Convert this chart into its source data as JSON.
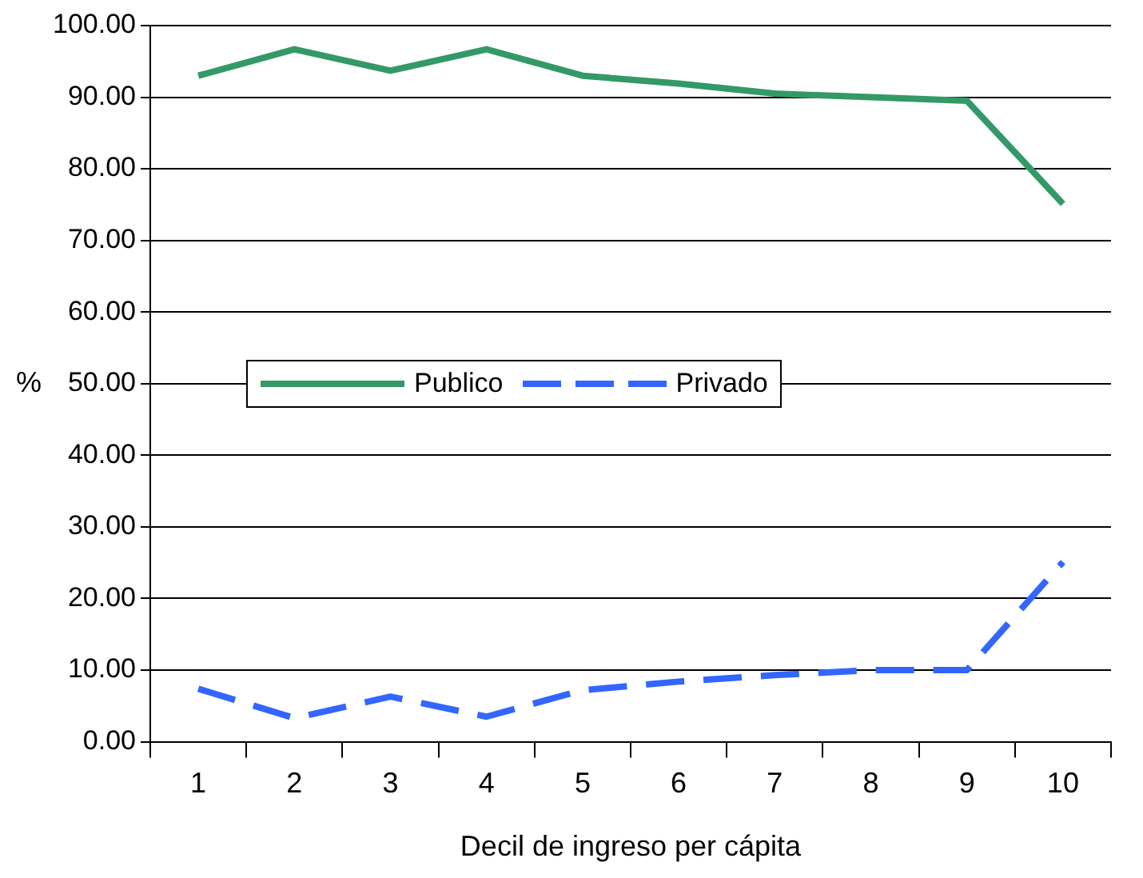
{
  "chart_data": {
    "type": "line",
    "xlabel": "Decil de ingreso per cápita",
    "ylabel": "%",
    "categories": [
      "1",
      "2",
      "3",
      "4",
      "5",
      "6",
      "7",
      "8",
      "9",
      "10"
    ],
    "series": [
      {
        "name": "Publico",
        "color": "#339966",
        "line_style": "solid",
        "values": [
          93.0,
          96.7,
          93.7,
          96.7,
          93.0,
          91.9,
          90.5,
          90.0,
          89.5,
          75.1
        ]
      },
      {
        "name": "Privado",
        "color": "#3366ff",
        "line_style": "dashed",
        "values": [
          7.4,
          3.3,
          6.3,
          3.5,
          7.2,
          8.4,
          9.3,
          10.0,
          10.0,
          25.1
        ]
      }
    ],
    "ylim": [
      0,
      100
    ],
    "yticks": [
      {
        "value": 0,
        "label": "0.00"
      },
      {
        "value": 10,
        "label": "10.00"
      },
      {
        "value": 20,
        "label": "20.00"
      },
      {
        "value": 30,
        "label": "30.00"
      },
      {
        "value": 40,
        "label": "40.00"
      },
      {
        "value": 50,
        "label": "50.00"
      },
      {
        "value": 60,
        "label": "60.00"
      },
      {
        "value": 70,
        "label": "70.00"
      },
      {
        "value": 80,
        "label": "80.00"
      },
      {
        "value": 90,
        "label": "90.00"
      },
      {
        "value": 100,
        "label": "100.00"
      }
    ],
    "grid": "y",
    "legend": "left",
    "marker": "none"
  }
}
